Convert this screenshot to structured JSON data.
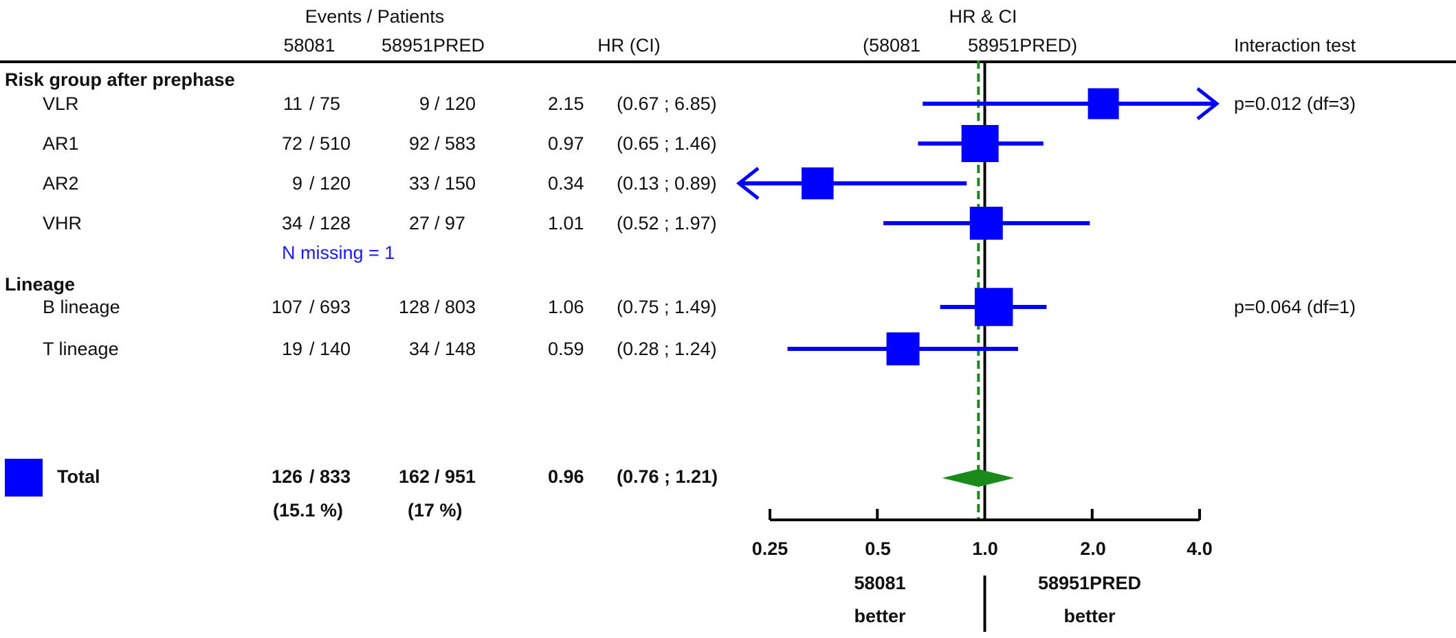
{
  "header": {
    "events_patients": "Events / Patients",
    "col_a": "58081",
    "col_b": "58951PRED",
    "hr_ci": "HR (CI)",
    "plot_title": "HR & CI",
    "plot_sub_left": "(58081",
    "plot_sub_right": "58951PRED)",
    "interaction": "Interaction test"
  },
  "groups": [
    {
      "label": "Risk group after prephase",
      "rows": [
        {
          "label": "VLR",
          "a_events": "11",
          "a_patients": "/ 75",
          "b_events": "9",
          "b_patients": "/ 120",
          "hr": "2.15",
          "ci": "(0.67 ; 6.85)"
        },
        {
          "label": "AR1",
          "a_events": "72",
          "a_patients": "/ 510",
          "b_events": "92",
          "b_patients": "/ 583",
          "hr": "0.97",
          "ci": "(0.65 ; 1.46)"
        },
        {
          "label": "AR2",
          "a_events": "9",
          "a_patients": "/ 120",
          "b_events": "33",
          "b_patients": "/ 150",
          "hr": "0.34",
          "ci": "(0.13 ; 0.89)"
        },
        {
          "label": "VHR",
          "a_events": "34",
          "a_patients": "/ 128",
          "b_events": "27",
          "b_patients": "/ 97",
          "hr": "1.01",
          "ci": "(0.52 ; 1.97)"
        }
      ],
      "note": "N missing = 1",
      "interaction": "p=0.012 (df=3)"
    },
    {
      "label": "Lineage",
      "rows": [
        {
          "label": "B lineage",
          "a_events": "107",
          "a_patients": "/ 693",
          "b_events": "128",
          "b_patients": "/ 803",
          "hr": "1.06",
          "ci": "(0.75 ; 1.49)"
        },
        {
          "label": "T lineage",
          "a_events": "19",
          "a_patients": "/ 140",
          "b_events": "34",
          "b_patients": "/ 148",
          "hr": "0.59",
          "ci": "(0.28 ; 1.24)"
        }
      ],
      "interaction": "p=0.064 (df=1)"
    }
  ],
  "total": {
    "label": "Total",
    "a_events": "126",
    "a_patients": "/ 833",
    "b_events": "162",
    "b_patients": "/ 951",
    "hr": "0.96",
    "ci": "(0.76 ; 1.21)",
    "a_pct": "(15.1 %)",
    "b_pct": "(17 %)"
  },
  "axis": {
    "ticks": [
      "0.25",
      "0.5",
      "1.0",
      "2.0",
      "4.0"
    ],
    "left_label_1": "58081",
    "left_label_2": "better",
    "right_label_1": "58951PRED",
    "right_label_2": "better"
  },
  "colors": {
    "marker": "#0000ff",
    "diamond": "#1a8a1a",
    "reference": "#000000",
    "overall": "#1a8a1a"
  },
  "chart_data": {
    "type": "forest",
    "x_scale": "log",
    "xlim": [
      0.25,
      4.0
    ],
    "x_ticks": [
      0.25,
      0.5,
      1.0,
      2.0,
      4.0
    ],
    "reference_line": 1.0,
    "overall_line": 0.96,
    "rows": [
      {
        "label": "VLR",
        "hr": 2.15,
        "lo": 0.67,
        "hi": 6.85,
        "weight": 0.5
      },
      {
        "label": "AR1",
        "hr": 0.97,
        "lo": 0.65,
        "hi": 1.46,
        "weight": 0.8
      },
      {
        "label": "AR2",
        "hr": 0.34,
        "lo": 0.13,
        "hi": 0.89,
        "weight": 0.55
      },
      {
        "label": "VHR",
        "hr": 1.01,
        "lo": 0.52,
        "hi": 1.97,
        "weight": 0.6
      },
      {
        "label": "B lineage",
        "hr": 1.06,
        "lo": 0.75,
        "hi": 1.49,
        "weight": 0.85
      },
      {
        "label": "T lineage",
        "hr": 0.59,
        "lo": 0.28,
        "hi": 1.24,
        "weight": 0.6
      }
    ],
    "total": {
      "label": "Total",
      "hr": 0.96,
      "lo": 0.76,
      "hi": 1.21
    }
  }
}
